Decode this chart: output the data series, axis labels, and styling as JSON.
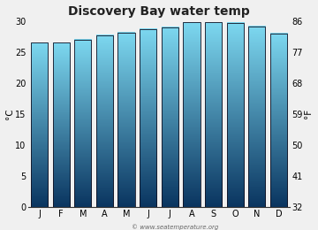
{
  "title": "Discovery Bay water temp",
  "months": [
    "J",
    "F",
    "M",
    "A",
    "M",
    "J",
    "J",
    "A",
    "S",
    "O",
    "N",
    "D"
  ],
  "values_c": [
    26.5,
    26.5,
    27.0,
    27.7,
    28.1,
    28.7,
    29.0,
    29.8,
    29.8,
    29.7,
    29.1,
    28.0
  ],
  "ylim_c": [
    0,
    30
  ],
  "ylim_f": [
    32,
    86
  ],
  "yticks_c": [
    0,
    5,
    10,
    15,
    20,
    25,
    30
  ],
  "yticks_f": [
    32,
    41,
    50,
    59,
    68,
    77,
    86
  ],
  "ylabel_left": "°C",
  "ylabel_right": "°F",
  "bar_color_top": "#7dd8f0",
  "bar_color_bottom": "#0a3560",
  "bar_edge_color": "#111122",
  "plot_bg_color": "#f0f0f0",
  "fig_bg_color": "#f0f0f0",
  "watermark": "© www.seatemperature.org",
  "title_fontsize": 10,
  "axis_fontsize": 7,
  "label_fontsize": 7.5
}
